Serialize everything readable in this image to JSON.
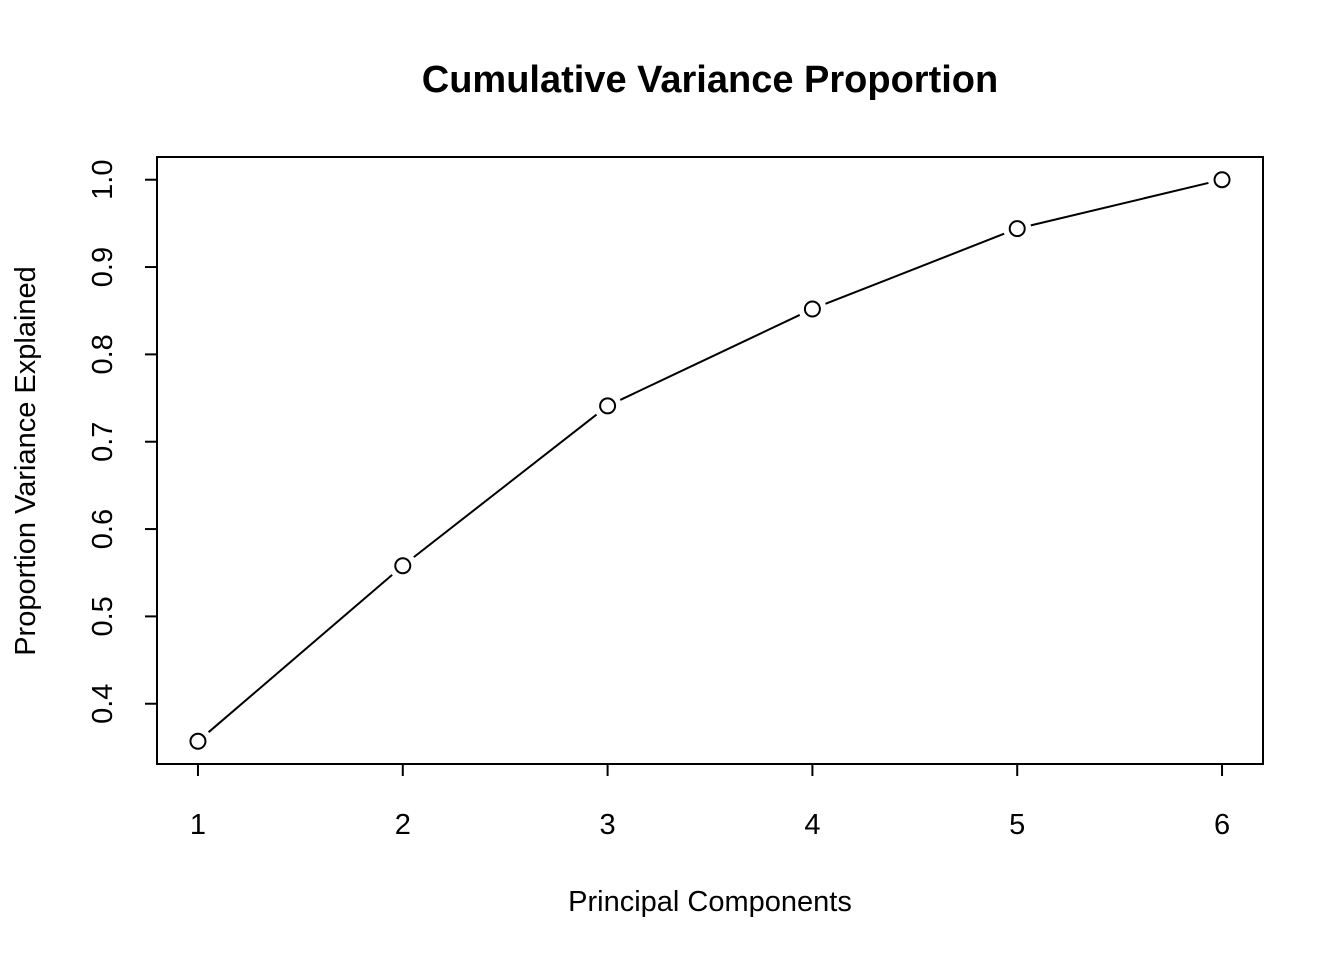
{
  "chart_data": {
    "type": "line",
    "title": "Cumulative Variance Proportion",
    "xlabel": "Principal Components",
    "ylabel": "Proportion Variance Explained",
    "x": [
      1,
      2,
      3,
      4,
      5,
      6
    ],
    "values": [
      0.357,
      0.558,
      0.741,
      0.852,
      0.944,
      1.0
    ],
    "xlim": [
      0.8,
      6.2
    ],
    "ylim": [
      0.331,
      1.026
    ],
    "xticks": [
      1,
      2,
      3,
      4,
      5,
      6
    ],
    "yticks": [
      0.4,
      0.5,
      0.6,
      0.7,
      0.8,
      0.9,
      1.0
    ],
    "xtick_labels": [
      "1",
      "2",
      "3",
      "4",
      "5",
      "6"
    ],
    "ytick_labels": [
      "0.4",
      "0.5",
      "0.6",
      "0.7",
      "0.8",
      "0.9",
      "1.0"
    ],
    "marker": "open-circle",
    "grid": false,
    "legend": "none",
    "line_color": "#000000",
    "background_color": "#ffffff"
  }
}
